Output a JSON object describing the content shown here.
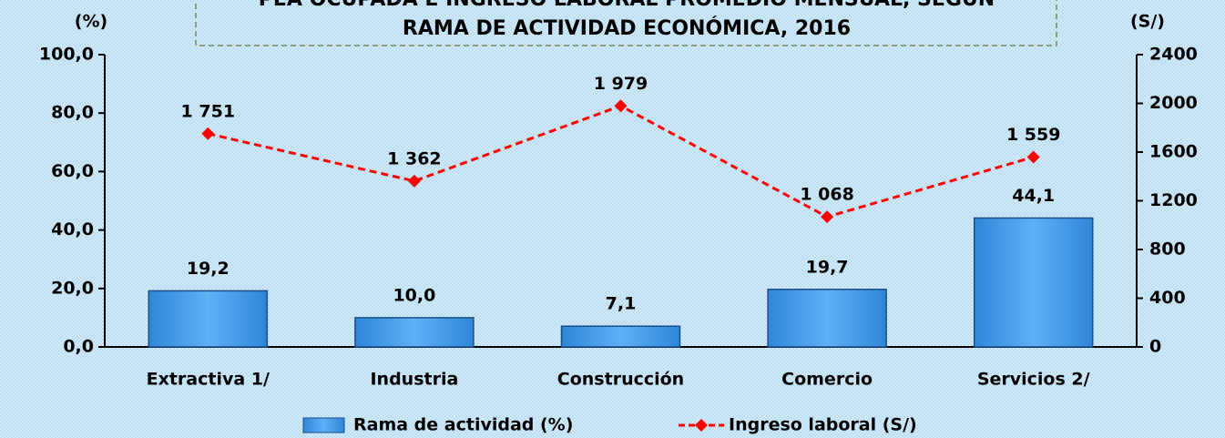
{
  "chart_data": {
    "type": "bar",
    "title_lines": [
      "PEA OCUPADA E INGRESO LABORAL PROMEDIO MENSUAL, SEGÚN",
      "RAMA DE ACTIVIDAD ECONÓMICA, 2016"
    ],
    "y_label": "(%)",
    "y2_label": "(S/)",
    "categories": [
      "Extractiva  1/",
      "Industria",
      "Construcción",
      "Comercio",
      "Servicios  2/"
    ],
    "series": [
      {
        "name": "Rama de actividad (%)",
        "type": "bar",
        "color": "#4a9fe8",
        "values": [
          19.2,
          10.0,
          7.1,
          19.7,
          44.1
        ],
        "value_labels": [
          "19,2",
          "10,0",
          "7,1",
          "19,7",
          "44,1"
        ]
      },
      {
        "name": "Ingreso laboral  (S/)",
        "type": "line",
        "axis": "y2",
        "color": "#ff0000",
        "values": [
          1751,
          1362,
          1979,
          1068,
          1559
        ],
        "value_labels": [
          "1 751",
          "1 362",
          "1 979",
          "1 068",
          "1 559"
        ]
      }
    ],
    "ylim": [
      0,
      100
    ],
    "yticks": [
      {
        "value": 0,
        "label": "0,0"
      },
      {
        "value": 20,
        "label": "20,0"
      },
      {
        "value": 40,
        "label": "40,0"
      },
      {
        "value": 60,
        "label": "60,0"
      },
      {
        "value": 80,
        "label": "80,0"
      },
      {
        "value": 100,
        "label": "100,0"
      }
    ],
    "y2lim": [
      0,
      2400
    ],
    "y2ticks": [
      0,
      400,
      800,
      1200,
      1600,
      2000,
      2400
    ]
  }
}
